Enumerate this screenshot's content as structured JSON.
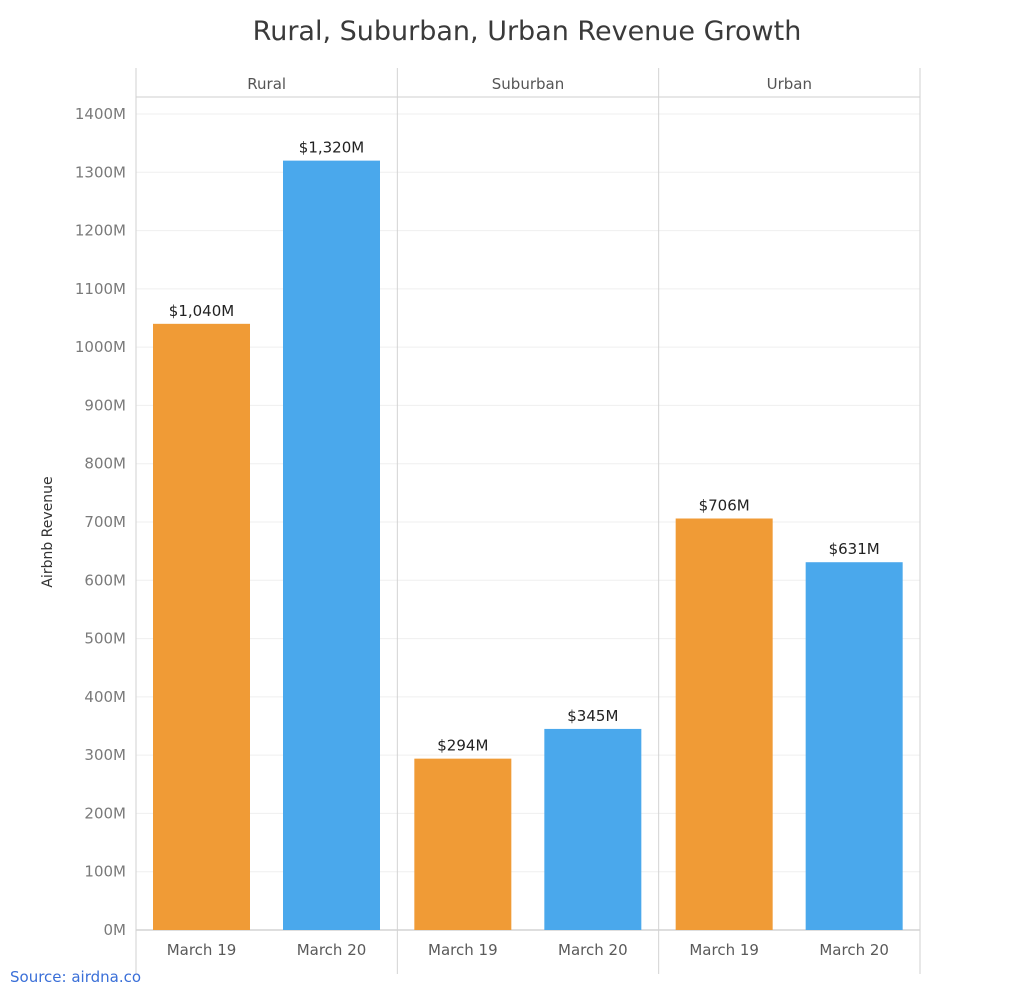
{
  "header": {
    "title": "Rural, Suburban, Urban Revenue Growth"
  },
  "footer": {
    "source": "Source: airdna.co"
  },
  "chart_data": {
    "type": "bar",
    "title": "Rural, Suburban, Urban Revenue Growth",
    "ylabel": "Airbnb Revenue",
    "xlabel": "",
    "ylim": [
      0,
      1400
    ],
    "yticks": [
      0,
      100,
      200,
      300,
      400,
      500,
      600,
      700,
      800,
      900,
      1000,
      1100,
      1200,
      1300,
      1400
    ],
    "ytick_labels": [
      "0M",
      "100M",
      "200M",
      "300M",
      "400M",
      "500M",
      "600M",
      "700M",
      "800M",
      "900M",
      "1000M",
      "1100M",
      "1200M",
      "1300M",
      "1400M"
    ],
    "grid": true,
    "categories": [
      "March 19",
      "March 20"
    ],
    "panels": [
      {
        "name": "Rural",
        "values": [
          1040,
          1320
        ],
        "labels": [
          "$1,040M",
          "$1,320M"
        ]
      },
      {
        "name": "Suburban",
        "values": [
          294,
          345
        ],
        "labels": [
          "$294M",
          "$345M"
        ]
      },
      {
        "name": "Urban",
        "values": [
          706,
          631
        ],
        "labels": [
          "$706M",
          "$631M"
        ]
      }
    ],
    "colors": [
      "#f09b36",
      "#4aa8ec"
    ]
  }
}
